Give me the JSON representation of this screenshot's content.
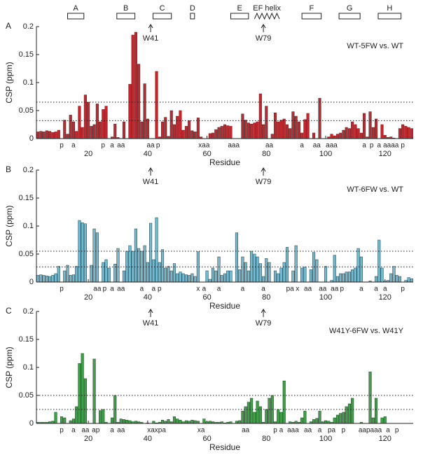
{
  "secondary_structure": [
    {
      "label": "A",
      "start": 13,
      "end": 18.5
    },
    {
      "label": "B",
      "start": 29.6,
      "end": 35.7
    },
    {
      "label": "C",
      "start": 41.8,
      "end": 48
    },
    {
      "label": "D",
      "start": 54.4,
      "end": 55.8
    },
    {
      "label": "E",
      "start": 68,
      "end": 74
    },
    {
      "label": "EF helix",
      "start": 76,
      "end": 84.4,
      "shape": "zigzag"
    },
    {
      "label": "F",
      "start": 92,
      "end": 98.5
    },
    {
      "label": "G",
      "start": 104.5,
      "end": 111.6
    },
    {
      "label": "H",
      "start": 117.7,
      "end": 125.4
    }
  ],
  "chart_data": [
    {
      "type": "bar",
      "panel": "A",
      "title": "WT-5FW vs. WT",
      "ylabel": "CSP (ppm)",
      "xlabel": "Residue",
      "color": "#c1272d",
      "markers": [
        {
          "x": 41,
          "label": "W41"
        },
        {
          "x": 79,
          "label": "W79"
        }
      ],
      "thresholds": [
        0.065,
        0.032
      ],
      "xlim": [
        2.5,
        129.5
      ],
      "xticks": [
        20,
        40,
        60,
        80,
        100,
        120
      ],
      "ylim": [
        0,
        0.2
      ],
      "yticks": [
        0,
        0.05,
        0.1,
        0.15,
        0.2
      ],
      "x": [
        3,
        4,
        5,
        6,
        7,
        8,
        9,
        10,
        11,
        12,
        13,
        14,
        15,
        16,
        17,
        18,
        19,
        20,
        21,
        22,
        23,
        24,
        25,
        26,
        27,
        28,
        29,
        30,
        31,
        32,
        33,
        34,
        35,
        36,
        37,
        38,
        39,
        40,
        41,
        42,
        43,
        44,
        45,
        46,
        47,
        48,
        49,
        50,
        51,
        52,
        53,
        54,
        55,
        56,
        57,
        58,
        59,
        60,
        61,
        62,
        63,
        64,
        65,
        66,
        67,
        68,
        69,
        70,
        71,
        72,
        73,
        74,
        75,
        76,
        77,
        78,
        79,
        80,
        81,
        82,
        83,
        84,
        85,
        86,
        87,
        88,
        89,
        90,
        91,
        92,
        93,
        94,
        95,
        96,
        97,
        98,
        99,
        100,
        101,
        102,
        103,
        104,
        105,
        106,
        107,
        108,
        109,
        110,
        111,
        112,
        113,
        114,
        115,
        116,
        117,
        118,
        119,
        120,
        121,
        122,
        123,
        124,
        125,
        126,
        127,
        128,
        129
      ],
      "values": [
        0.012,
        0.013,
        0.012,
        0.014,
        0.013,
        0.011,
        0.012,
        0.015,
        0,
        0.033,
        0.008,
        0.042,
        0.03,
        0.013,
        0.058,
        0.02,
        0.078,
        0.065,
        0.022,
        0.025,
        0.062,
        0.03,
        0.052,
        0.058,
        0,
        0.003,
        0.026,
        0.002,
        0,
        0.03,
        0,
        0.097,
        0.185,
        0.19,
        0.133,
        0.03,
        0.098,
        0.035,
        0,
        0,
        0.12,
        0.003,
        0.03,
        0.038,
        0.004,
        0.05,
        0.025,
        0.04,
        0.05,
        0.015,
        0.022,
        0.032,
        0.014,
        0.012,
        0.037,
        0.003,
        0,
        0,
        0.009,
        0.01,
        0.016,
        0.02,
        0.022,
        0.025,
        0.023,
        0.022,
        0,
        0,
        0,
        0.044,
        0.033,
        0.028,
        0.026,
        0.028,
        0.03,
        0.08,
        0.025,
        0.058,
        0,
        0.008,
        0.046,
        0.03,
        0.033,
        0.035,
        0.025,
        0.018,
        0.048,
        0.04,
        0.03,
        0.01,
        0.034,
        0.045,
        0,
        0.01,
        0,
        0.072,
        0,
        0,
        0.003,
        0.008,
        0.005,
        0.008,
        0.01,
        0.015,
        0.02,
        0.018,
        0.03,
        0.025,
        0.018,
        0.01,
        0.045,
        0.003,
        0.048,
        0.02,
        0.035,
        0,
        0.025,
        0.006,
        0.002,
        0.003,
        0.001,
        0,
        0.018,
        0.025,
        0.022,
        0.02,
        0.018
      ],
      "notes": [
        {
          "x": 11,
          "label": "p"
        },
        {
          "x": 15,
          "label": "a"
        },
        {
          "x": 25,
          "label": "p"
        },
        {
          "x": 28,
          "label": "a"
        },
        {
          "x": 31,
          "label": "aa"
        },
        {
          "x": 41,
          "label": "aa"
        },
        {
          "x": 43.5,
          "label": "p"
        },
        {
          "x": 59,
          "label": "xaa"
        },
        {
          "x": 69,
          "label": "aaa"
        },
        {
          "x": 81,
          "label": "aa"
        },
        {
          "x": 92,
          "label": "a"
        },
        {
          "x": 97,
          "label": "aa"
        },
        {
          "x": 102,
          "label": "aaa"
        },
        {
          "x": 113,
          "label": "a"
        },
        {
          "x": 115.5,
          "label": "p"
        },
        {
          "x": 118,
          "label": "a"
        },
        {
          "x": 122,
          "label": "aaaa"
        },
        {
          "x": 126,
          "label": "p"
        }
      ]
    },
    {
      "type": "bar",
      "panel": "B",
      "title": "WT-6FW vs. WT",
      "ylabel": "CSP (ppm)",
      "xlabel": "Residue",
      "color": "#72b9d0",
      "markers": [
        {
          "x": 41,
          "label": "W41"
        },
        {
          "x": 79,
          "label": "W79"
        }
      ],
      "thresholds": [
        0.055,
        0.027
      ],
      "xlim": [
        2.5,
        129.5
      ],
      "xticks": [
        20,
        40,
        60,
        80,
        100,
        120
      ],
      "ylim": [
        0,
        0.2
      ],
      "yticks": [
        0,
        0.05,
        0.1,
        0.15,
        0.2
      ],
      "x": [
        3,
        4,
        5,
        6,
        7,
        8,
        9,
        10,
        11,
        12,
        13,
        14,
        15,
        16,
        17,
        18,
        19,
        20,
        21,
        22,
        23,
        24,
        25,
        26,
        27,
        28,
        29,
        30,
        31,
        32,
        33,
        34,
        35,
        36,
        37,
        38,
        39,
        40,
        41,
        42,
        43,
        44,
        45,
        46,
        47,
        48,
        49,
        50,
        51,
        52,
        53,
        54,
        55,
        56,
        57,
        58,
        59,
        60,
        61,
        62,
        63,
        64,
        65,
        66,
        67,
        68,
        69,
        70,
        71,
        72,
        73,
        74,
        75,
        76,
        77,
        78,
        79,
        80,
        81,
        82,
        83,
        84,
        85,
        86,
        87,
        88,
        89,
        90,
        91,
        92,
        93,
        94,
        95,
        96,
        97,
        98,
        99,
        100,
        101,
        102,
        103,
        104,
        105,
        106,
        107,
        108,
        109,
        110,
        111,
        112,
        113,
        114,
        115,
        116,
        117,
        118,
        119,
        120,
        121,
        122,
        123,
        124,
        125,
        126,
        127,
        128,
        129
      ],
      "values": [
        0.012,
        0.013,
        0.012,
        0.011,
        0.01,
        0.012,
        0.015,
        0.028,
        0,
        0.02,
        0.03,
        0.012,
        0.013,
        0.028,
        0.11,
        0.106,
        0.104,
        0,
        0.03,
        0.095,
        0.088,
        0,
        0.035,
        0.04,
        0.025,
        0,
        0.032,
        0.06,
        0,
        0.02,
        0.055,
        0.065,
        0.055,
        0.095,
        0.06,
        0.055,
        0.065,
        0.035,
        0.105,
        0.04,
        0.115,
        0.035,
        0.058,
        0.025,
        0.028,
        0.02,
        0.033,
        0.015,
        0.018,
        0.015,
        0.013,
        0.012,
        0.015,
        0.01,
        0.054,
        0,
        0,
        0.02,
        0.005,
        0.025,
        0.02,
        0.045,
        0.012,
        0.015,
        0.02,
        0.02,
        0,
        0.088,
        0.022,
        0.045,
        0.035,
        0.02,
        0.055,
        0.05,
        0.045,
        0.033,
        0.01,
        0.042,
        0.035,
        0,
        0.02,
        0.015,
        0.025,
        0.035,
        0.062,
        0,
        0.02,
        0.065,
        0,
        0.025,
        0.027,
        0,
        0.022,
        0.053,
        0.04,
        0,
        0,
        0.028,
        0,
        0.003,
        0.048,
        0.01,
        0.015,
        0.015,
        0.018,
        0.018,
        0.022,
        0.025,
        0.06,
        0.045,
        0,
        0,
        0.002,
        0,
        0.01,
        0.075,
        0.025,
        0.002,
        0.003,
        0.015,
        0.028,
        0.012,
        0.01,
        0,
        0.003,
        0.008,
        0.006
      ],
      "notes": [
        {
          "x": 11,
          "label": "p"
        },
        {
          "x": 23,
          "label": "aa"
        },
        {
          "x": 25.5,
          "label": "p"
        },
        {
          "x": 28,
          "label": "a"
        },
        {
          "x": 31,
          "label": "aa"
        },
        {
          "x": 38,
          "label": "a"
        },
        {
          "x": 42,
          "label": "a"
        },
        {
          "x": 44,
          "label": "p"
        },
        {
          "x": 57,
          "label": "x"
        },
        {
          "x": 59,
          "label": "a"
        },
        {
          "x": 64,
          "label": "a"
        },
        {
          "x": 72,
          "label": "a"
        },
        {
          "x": 79,
          "label": "a"
        },
        {
          "x": 88,
          "label": "pa"
        },
        {
          "x": 90.5,
          "label": "x"
        },
        {
          "x": 94,
          "label": "aa"
        },
        {
          "x": 99,
          "label": "aa"
        },
        {
          "x": 103,
          "label": "aa"
        },
        {
          "x": 105.5,
          "label": "p"
        },
        {
          "x": 112,
          "label": "a"
        },
        {
          "x": 117,
          "label": "a"
        },
        {
          "x": 120,
          "label": "a"
        },
        {
          "x": 126,
          "label": "p"
        }
      ]
    },
    {
      "type": "bar",
      "panel": "C",
      "title": "W41Y-6FW vs. W41Y",
      "ylabel": "CSP (ppm)",
      "xlabel": "Residue",
      "color": "#3f9f49",
      "markers": [
        {
          "x": 41,
          "label": "W41"
        },
        {
          "x": 79,
          "label": "W79"
        }
      ],
      "thresholds": [
        0.05,
        0.025
      ],
      "xlim": [
        2.5,
        129.5
      ],
      "xticks": [
        20,
        40,
        60,
        80,
        100,
        120
      ],
      "ylim": [
        0,
        0.2
      ],
      "yticks": [
        0,
        0.05,
        0.1,
        0.15,
        0.2
      ],
      "x": [
        3,
        4,
        5,
        6,
        7,
        8,
        9,
        10,
        11,
        12,
        13,
        14,
        15,
        16,
        17,
        18,
        19,
        20,
        21,
        22,
        23,
        24,
        25,
        26,
        27,
        28,
        29,
        30,
        31,
        32,
        33,
        34,
        35,
        36,
        37,
        38,
        39,
        40,
        41,
        42,
        43,
        44,
        45,
        46,
        47,
        48,
        49,
        50,
        51,
        52,
        53,
        54,
        55,
        56,
        57,
        58,
        59,
        60,
        61,
        62,
        63,
        64,
        65,
        66,
        67,
        68,
        69,
        70,
        71,
        72,
        73,
        74,
        75,
        76,
        77,
        78,
        79,
        80,
        81,
        82,
        83,
        84,
        85,
        86,
        87,
        88,
        89,
        90,
        91,
        92,
        93,
        94,
        95,
        96,
        97,
        98,
        99,
        100,
        101,
        102,
        103,
        104,
        105,
        106,
        107,
        108,
        109,
        110,
        111,
        112,
        113,
        114,
        115,
        116,
        117,
        118,
        119,
        120,
        121,
        122,
        123,
        124,
        125,
        126,
        127,
        128,
        129
      ],
      "values": [
        0.002,
        0.002,
        0.002,
        0.002,
        0.003,
        0.004,
        0.02,
        0,
        0.012,
        0.01,
        0,
        0.005,
        0.008,
        0.03,
        0.107,
        0.125,
        0.08,
        0,
        0,
        0.115,
        0,
        0.023,
        0.025,
        0.002,
        0,
        0.01,
        0.05,
        0.002,
        0.008,
        0.007,
        0.006,
        0.005,
        0.003,
        0.004,
        0.003,
        0.002,
        0,
        0.001,
        0,
        0.004,
        0.001,
        0.002,
        0.006,
        0.004,
        0.007,
        0.003,
        0.012,
        0.008,
        0.006,
        0.003,
        0.005,
        0.004,
        0.006,
        0.005,
        0.004,
        0,
        0.008,
        0.003,
        0.004,
        0.003,
        0.002,
        0.002,
        0.003,
        0.001,
        0.002,
        0.003,
        0,
        0.004,
        0.005,
        0.022,
        0.03,
        0.038,
        0.045,
        0.02,
        0.04,
        0.03,
        0.002,
        0.025,
        0.045,
        0.05,
        0.003,
        0.025,
        0.02,
        0.076,
        0,
        0.003,
        0.002,
        0.004,
        0.002,
        0.01,
        0.022,
        0,
        0.003,
        0.007,
        0.009,
        0.022,
        0.003,
        0.005,
        0.004,
        0.002,
        0.01,
        0.015,
        0.018,
        0.02,
        0.03,
        0.035,
        0.045,
        0,
        0,
        0.002,
        0,
        0,
        0.092,
        0.01,
        0.045,
        0,
        0.01,
        0.012,
        0,
        0,
        0,
        0,
        0,
        0,
        0,
        0,
        0
      ],
      "notes": [
        {
          "x": 11,
          "label": "p"
        },
        {
          "x": 15,
          "label": "a"
        },
        {
          "x": 19,
          "label": "aa"
        },
        {
          "x": 22.5,
          "label": "ap"
        },
        {
          "x": 28,
          "label": "a"
        },
        {
          "x": 31,
          "label": "aa"
        },
        {
          "x": 43,
          "label": "xaxpa"
        },
        {
          "x": 58,
          "label": "xa"
        },
        {
          "x": 73,
          "label": "aa"
        },
        {
          "x": 83,
          "label": "p"
        },
        {
          "x": 85,
          "label": "a"
        },
        {
          "x": 89,
          "label": "aaa"
        },
        {
          "x": 94,
          "label": "aa"
        },
        {
          "x": 98,
          "label": "a"
        },
        {
          "x": 102,
          "label": "pa"
        },
        {
          "x": 106,
          "label": "p"
        },
        {
          "x": 115,
          "label": "aapaaa"
        },
        {
          "x": 121,
          "label": "a"
        },
        {
          "x": 124,
          "label": "p"
        }
      ]
    }
  ]
}
